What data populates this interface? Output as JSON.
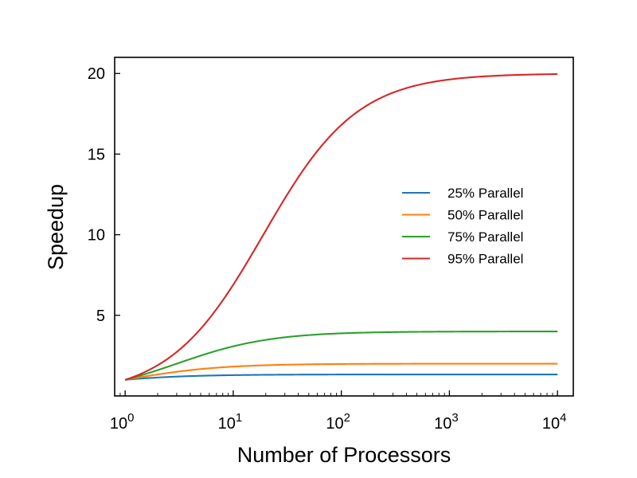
{
  "chart_data": {
    "type": "line",
    "title": "",
    "xlabel": "Number of Processors",
    "ylabel": "Speedup",
    "xscale": "log",
    "xlim": [
      0.8,
      14000
    ],
    "ylim": [
      0,
      21
    ],
    "x_ticks": [
      {
        "value": 1,
        "base": "10",
        "exp": "0"
      },
      {
        "value": 10,
        "base": "10",
        "exp": "1"
      },
      {
        "value": 100,
        "base": "10",
        "exp": "2"
      },
      {
        "value": 1000,
        "base": "10",
        "exp": "3"
      },
      {
        "value": 10000,
        "base": "10",
        "exp": "4"
      }
    ],
    "y_ticks": [
      {
        "value": 5,
        "label": "5"
      },
      {
        "value": 10,
        "label": "10"
      },
      {
        "value": 15,
        "label": "15"
      },
      {
        "value": 20,
        "label": "20"
      }
    ],
    "grid": false,
    "legend_position": "right",
    "series": [
      {
        "name": "25% Parallel",
        "parallel_fraction": 0.25,
        "color": "#1f77b4"
      },
      {
        "name": "50% Parallel",
        "parallel_fraction": 0.5,
        "color": "#ff7f0e"
      },
      {
        "name": "75% Parallel",
        "parallel_fraction": 0.75,
        "color": "#2ca02c"
      },
      {
        "name": "95% Parallel",
        "parallel_fraction": 0.95,
        "color": "#d62728"
      }
    ],
    "x": [
      1,
      2,
      3,
      4,
      5,
      7,
      10,
      15,
      20,
      30,
      50,
      70,
      100,
      200,
      300,
      500,
      1000,
      2000,
      5000,
      10000
    ]
  }
}
